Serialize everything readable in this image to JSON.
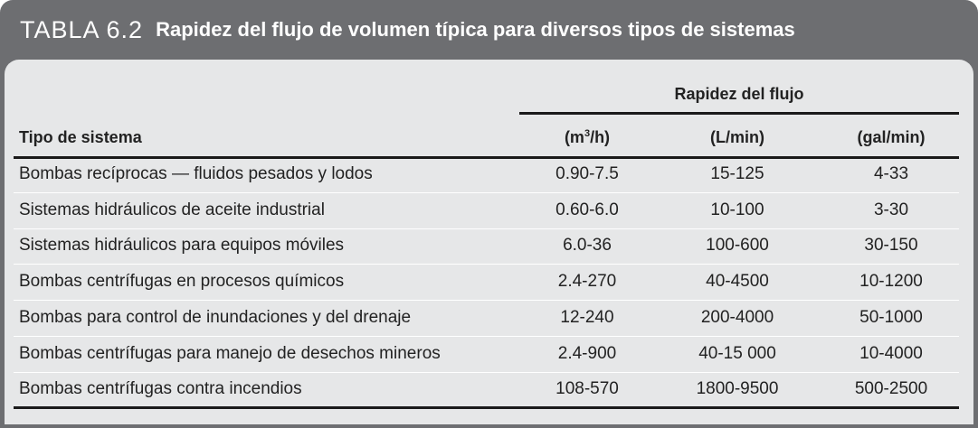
{
  "title": {
    "number": "TABLA 6.2",
    "text": "Rapidez del flujo de volumen típica para diversos tipos de sistemas"
  },
  "table": {
    "group_header": "Rapidez del flujo",
    "columns": {
      "system": "Tipo de sistema",
      "m3h_prefix": "(m",
      "m3h_sup": "3",
      "m3h_suffix": "/h)",
      "lmin": "(L/min)",
      "galmin": "(gal/min)"
    },
    "rows": [
      {
        "system": "Bombas recíprocas — fluidos pesados y lodos",
        "m3h": "0.90-7.5",
        "lmin": "15-125",
        "galmin": "4-33"
      },
      {
        "system": "Sistemas hidráulicos de aceite industrial",
        "m3h": "0.60-6.0",
        "lmin": "10-100",
        "galmin": "3-30"
      },
      {
        "system": "Sistemas hidráulicos para equipos móviles",
        "m3h": "6.0-36",
        "lmin": "100-600",
        "galmin": "30-150"
      },
      {
        "system": "Bombas centrífugas en procesos químicos",
        "m3h": "2.4-270",
        "lmin": "40-4500",
        "galmin": "10-1200"
      },
      {
        "system": "Bombas para control de inundaciones y del drenaje",
        "m3h": "12-240",
        "lmin": "200-4000",
        "galmin": "50-1000"
      },
      {
        "system": "Bombas centrífugas para manejo de desechos mineros",
        "m3h": "2.4-900",
        "lmin": "40-15 000",
        "galmin": "10-4000"
      },
      {
        "system": "Bombas centrífugas contra incendios",
        "m3h": "108-570",
        "lmin": "1800-9500",
        "galmin": "500-2500"
      }
    ]
  },
  "colors": {
    "frame": "#6d6e71",
    "panel": "#e6e7e8",
    "rule": "#1a1a1a",
    "row_separator": "#ffffff"
  }
}
